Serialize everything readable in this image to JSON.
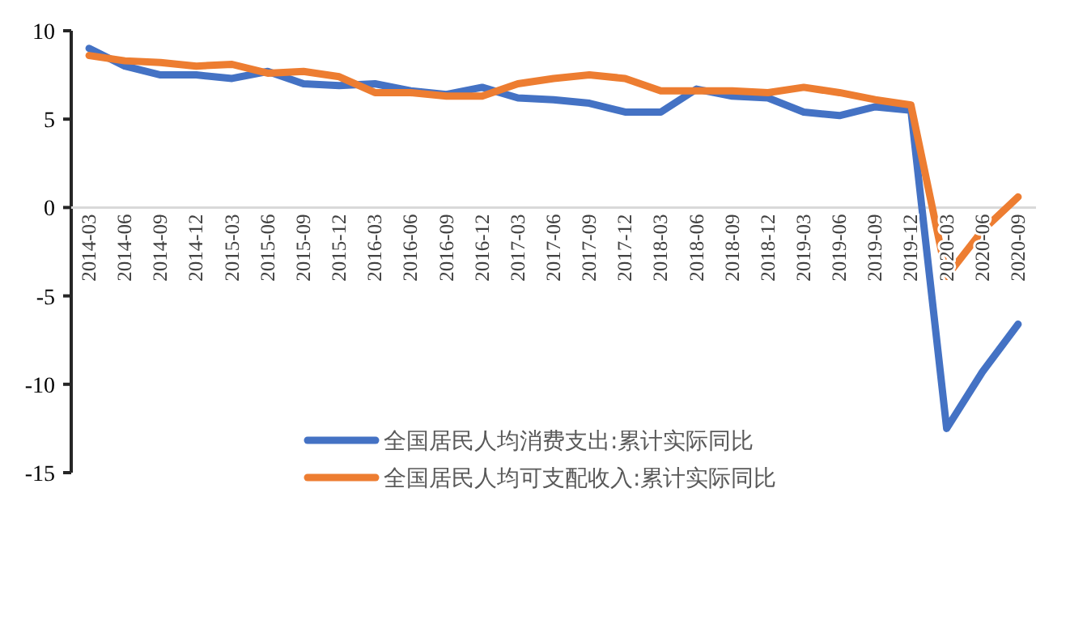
{
  "chart_data": {
    "type": "line",
    "categories": [
      "2014-03",
      "2014-06",
      "2014-09",
      "2014-12",
      "2015-03",
      "2015-06",
      "2015-09",
      "2015-12",
      "2016-03",
      "2016-06",
      "2016-09",
      "2016-12",
      "2017-03",
      "2017-06",
      "2017-09",
      "2017-12",
      "2018-03",
      "2018-06",
      "2018-09",
      "2018-12",
      "2019-03",
      "2019-06",
      "2019-09",
      "2019-12",
      "2020-03",
      "2020-06",
      "2020-09"
    ],
    "series": [
      {
        "name": "全国居民人均消费支出:累计实际同比",
        "color": "#4472c4",
        "values": [
          9.0,
          8.0,
          7.5,
          7.5,
          7.3,
          7.7,
          7.0,
          6.9,
          7.0,
          6.6,
          6.4,
          6.8,
          6.2,
          6.1,
          5.9,
          5.4,
          5.4,
          6.7,
          6.3,
          6.2,
          5.4,
          5.2,
          5.7,
          5.5,
          -12.5,
          -9.3,
          -6.6
        ]
      },
      {
        "name": "全国居民人均可支配收入:累计实际同比",
        "color": "#ed7d31",
        "values": [
          8.6,
          8.3,
          8.2,
          8.0,
          8.1,
          7.6,
          7.7,
          7.4,
          6.5,
          6.5,
          6.3,
          6.3,
          7.0,
          7.3,
          7.5,
          7.3,
          6.6,
          6.6,
          6.6,
          6.5,
          6.8,
          6.5,
          6.1,
          5.8,
          -3.9,
          -1.3,
          0.6
        ]
      }
    ],
    "ylim": [
      -15,
      10
    ],
    "yticks": [
      -15,
      -10,
      -5,
      0,
      5,
      10
    ],
    "legend": "bottom",
    "grid": false
  }
}
